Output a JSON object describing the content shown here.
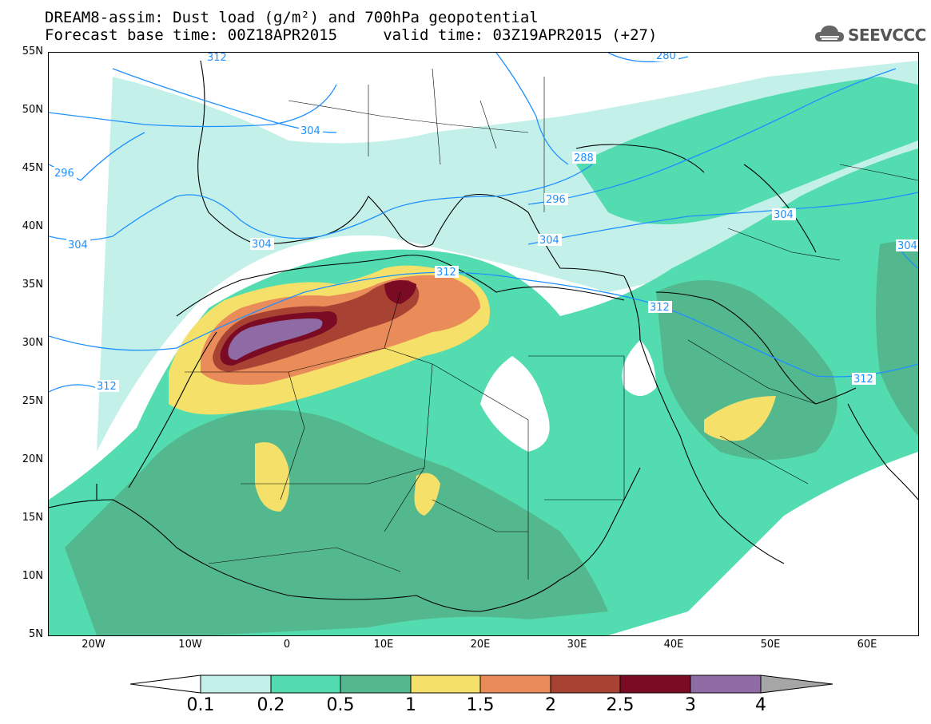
{
  "header": {
    "line1": "DREAM8-assim: Dust load (g/m²) and 700hPa geopotential",
    "line2": "Forecast base time: 00Z18APR2015     valid time: 03Z19APR2015 (+27)"
  },
  "logo": {
    "text": "SEEVCCC",
    "icon": "cloud-icon"
  },
  "axes": {
    "lat_labels": [
      "55N",
      "50N",
      "45N",
      "40N",
      "35N",
      "30N",
      "25N",
      "20N",
      "15N",
      "10N",
      "5N"
    ],
    "lon_labels": [
      "20W",
      "10W",
      "0",
      "10E",
      "20E",
      "30E",
      "40E",
      "50E",
      "60E"
    ]
  },
  "contours": {
    "labels": [
      "312",
      "280",
      "304",
      "296",
      "288",
      "296",
      "304",
      "304",
      "304",
      "304",
      "312",
      "312",
      "312",
      "312",
      "304"
    ]
  },
  "colorbar": {
    "labels": [
      "0.1",
      "0.2",
      "0.5",
      "1",
      "1.5",
      "2",
      "2.5",
      "3",
      "4"
    ],
    "colors": [
      "#c4f0ea",
      "#52dcb0",
      "#54b88f",
      "#f5e06a",
      "#ea8b5a",
      "#a84232",
      "#7b0b24",
      "#8f6ba5"
    ]
  },
  "map": {
    "extent": {
      "lon": [
        -25,
        65
      ],
      "lat": [
        5,
        55
      ]
    },
    "background": "#ffffff",
    "dust_colors": {
      "light": "#c4f0ea",
      "green": "#52dcb0",
      "dark_green": "#54b88f",
      "yellow": "#f5e06a",
      "orange": "#ea8b5a",
      "brown": "#a84232",
      "maroon": "#7b0b24",
      "purple": "#8f6ba5"
    },
    "contour_color": "#1e90ff"
  }
}
